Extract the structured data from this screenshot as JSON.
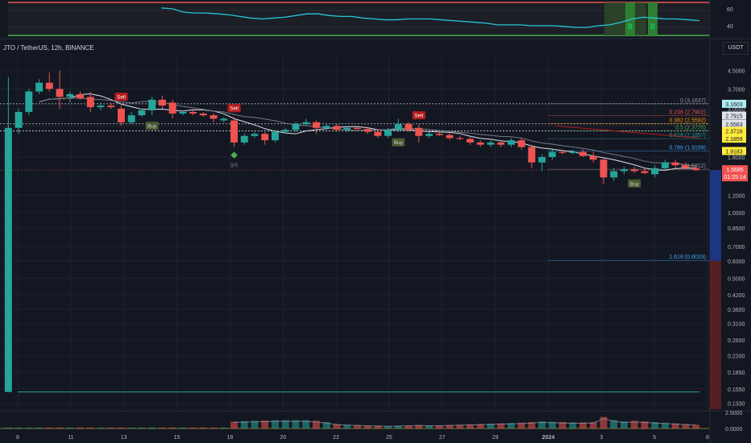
{
  "symbol_title": "JTO / TetherUS, 12h, BINANCE",
  "currency": "USDT",
  "colors": {
    "up": "#26a69a",
    "down": "#ef5350",
    "background": "#131722",
    "grid": "#1e222d",
    "sell_badge": "#b71c1c",
    "buy_badge": "#4a5a2e",
    "oscillator": "#26c6da"
  },
  "oscillator": {
    "labels": [
      "60",
      "40"
    ]
  },
  "chart_data": {
    "type": "candlestick",
    "x_tick_labels": [
      "8",
      "11",
      "13",
      "15",
      "18",
      "20",
      "22",
      "25",
      "27",
      "29",
      "2024",
      "3",
      "5",
      "8"
    ],
    "y_tick_labels": [
      "4.5000",
      "3.7000",
      "3.0000",
      "2.5000",
      "1.8000",
      "1.2000",
      "1.0000",
      "0.8500",
      "0.7000",
      "0.6000",
      "0.5000",
      "0.4200",
      "0.3600",
      "0.3100",
      "0.2600",
      "0.2200",
      "0.1850",
      "0.1550",
      "0.1330"
    ],
    "y_scale": "log",
    "ylim": [
      0.125,
      5.4
    ],
    "current_price": "1.5685",
    "countdown": "01:25:14",
    "price_labels": [
      {
        "text": "3.1603",
        "value": 3.1603,
        "style": "cyan"
      },
      {
        "text": "2.7915",
        "value": 2.7915,
        "style": "white"
      },
      {
        "text": "2.5563",
        "value": 2.5563,
        "style": "white"
      },
      {
        "text": "2.3716",
        "value": 2.3716,
        "style": "yellow"
      },
      {
        "text": "2.1859",
        "value": 2.1859,
        "style": "yellow"
      },
      {
        "text": "1.9183",
        "value": 1.9183,
        "style": "yellow"
      }
    ],
    "fib_levels": [
      {
        "label": "0 (3.1637)",
        "value": 3.1637,
        "color": "#9598a1"
      },
      {
        "label": "0.236 (2.7902)",
        "value": 2.7902,
        "color": "#ef5350"
      },
      {
        "label": "0.382 (2.5592)",
        "value": 2.5592,
        "color": "#ff9800"
      },
      {
        "label": "0.5 (2.3725)",
        "value": 2.3725,
        "color": "#4caf50"
      },
      {
        "label": "0.618 (2.1857)",
        "value": 2.1857,
        "color": "#26a69a"
      },
      {
        "label": "0.786 (1.9199)",
        "value": 1.9199,
        "color": "#42a5f5"
      },
      {
        "label": "1 (1.5812)",
        "value": 1.5812,
        "color": "#9598a1"
      },
      {
        "label": "1.618 (0.6033)",
        "value": 0.6033,
        "color": "#42a5f5"
      }
    ],
    "signals": [
      {
        "type": "Sell",
        "index": 11
      },
      {
        "type": "Buy",
        "index": 14
      },
      {
        "type": "Sell",
        "index": 22
      },
      {
        "type": "Buy",
        "index": 38
      },
      {
        "type": "Sell",
        "index": 40
      },
      {
        "type": "Buy",
        "index": 61
      }
    ],
    "pl_marker": {
      "text": "[pl]",
      "index": 22
    },
    "candles": [
      {
        "o": 0.15,
        "h": 4.2,
        "l": 0.15,
        "c": 2.45
      },
      {
        "o": 2.45,
        "h": 3.0,
        "l": 2.3,
        "c": 2.9
      },
      {
        "o": 2.9,
        "h": 3.7,
        "l": 2.8,
        "c": 3.6
      },
      {
        "o": 3.6,
        "h": 4.1,
        "l": 3.5,
        "c": 3.95
      },
      {
        "o": 3.95,
        "h": 4.4,
        "l": 3.6,
        "c": 3.7
      },
      {
        "o": 3.7,
        "h": 4.5,
        "l": 3.0,
        "c": 3.4
      },
      {
        "o": 3.4,
        "h": 3.6,
        "l": 3.2,
        "c": 3.5
      },
      {
        "o": 3.5,
        "h": 3.6,
        "l": 3.3,
        "c": 3.35
      },
      {
        "o": 3.4,
        "h": 3.6,
        "l": 2.9,
        "c": 3.05
      },
      {
        "o": 3.05,
        "h": 3.2,
        "l": 2.95,
        "c": 3.1
      },
      {
        "o": 3.1,
        "h": 3.2,
        "l": 3.0,
        "c": 3.05
      },
      {
        "o": 3.0,
        "h": 3.1,
        "l": 2.5,
        "c": 2.6
      },
      {
        "o": 2.6,
        "h": 2.9,
        "l": 2.55,
        "c": 2.8
      },
      {
        "o": 2.8,
        "h": 3.0,
        "l": 2.75,
        "c": 2.95
      },
      {
        "o": 2.95,
        "h": 3.4,
        "l": 2.8,
        "c": 3.3
      },
      {
        "o": 3.3,
        "h": 3.45,
        "l": 3.0,
        "c": 3.1
      },
      {
        "o": 3.2,
        "h": 3.3,
        "l": 2.7,
        "c": 2.85
      },
      {
        "o": 2.85,
        "h": 2.95,
        "l": 2.8,
        "c": 2.9
      },
      {
        "o": 2.9,
        "h": 2.95,
        "l": 2.8,
        "c": 2.85
      },
      {
        "o": 2.85,
        "h": 2.9,
        "l": 2.75,
        "c": 2.8
      },
      {
        "o": 2.8,
        "h": 2.85,
        "l": 2.6,
        "c": 2.7
      },
      {
        "o": 2.65,
        "h": 2.75,
        "l": 2.6,
        "c": 2.7
      },
      {
        "o": 2.65,
        "h": 2.75,
        "l": 2.0,
        "c": 2.1
      },
      {
        "o": 2.1,
        "h": 2.3,
        "l": 2.05,
        "c": 2.25
      },
      {
        "o": 2.25,
        "h": 2.35,
        "l": 2.2,
        "c": 2.3
      },
      {
        "o": 2.3,
        "h": 2.35,
        "l": 2.05,
        "c": 2.15
      },
      {
        "o": 2.15,
        "h": 2.4,
        "l": 2.1,
        "c": 2.35
      },
      {
        "o": 2.35,
        "h": 2.45,
        "l": 2.3,
        "c": 2.4
      },
      {
        "o": 2.4,
        "h": 2.6,
        "l": 2.35,
        "c": 2.55
      },
      {
        "o": 2.55,
        "h": 2.7,
        "l": 2.5,
        "c": 2.6
      },
      {
        "o": 2.6,
        "h": 2.65,
        "l": 2.3,
        "c": 2.45
      },
      {
        "o": 2.45,
        "h": 2.55,
        "l": 2.4,
        "c": 2.5
      },
      {
        "o": 2.5,
        "h": 2.55,
        "l": 2.35,
        "c": 2.4
      },
      {
        "o": 2.4,
        "h": 2.5,
        "l": 2.35,
        "c": 2.45
      },
      {
        "o": 2.45,
        "h": 2.5,
        "l": 2.4,
        "c": 2.42
      },
      {
        "o": 2.42,
        "h": 2.48,
        "l": 2.3,
        "c": 2.35
      },
      {
        "o": 2.35,
        "h": 2.4,
        "l": 2.2,
        "c": 2.25
      },
      {
        "o": 2.25,
        "h": 2.45,
        "l": 2.2,
        "c": 2.4
      },
      {
        "o": 2.4,
        "h": 2.7,
        "l": 2.35,
        "c": 2.55
      },
      {
        "o": 2.55,
        "h": 2.6,
        "l": 2.35,
        "c": 2.4
      },
      {
        "o": 2.45,
        "h": 2.55,
        "l": 2.1,
        "c": 2.25
      },
      {
        "o": 2.25,
        "h": 2.35,
        "l": 2.2,
        "c": 2.3
      },
      {
        "o": 2.3,
        "h": 2.35,
        "l": 2.25,
        "c": 2.27
      },
      {
        "o": 2.27,
        "h": 2.32,
        "l": 2.15,
        "c": 2.2
      },
      {
        "o": 2.2,
        "h": 2.25,
        "l": 2.15,
        "c": 2.18
      },
      {
        "o": 2.18,
        "h": 2.22,
        "l": 2.05,
        "c": 2.1
      },
      {
        "o": 2.1,
        "h": 2.15,
        "l": 2.0,
        "c": 2.05
      },
      {
        "o": 2.05,
        "h": 2.15,
        "l": 2.0,
        "c": 2.1
      },
      {
        "o": 2.1,
        "h": 2.12,
        "l": 2.0,
        "c": 2.05
      },
      {
        "o": 2.05,
        "h": 2.2,
        "l": 2.0,
        "c": 2.15
      },
      {
        "o": 2.15,
        "h": 2.2,
        "l": 1.95,
        "c": 2.0
      },
      {
        "o": 2.0,
        "h": 2.05,
        "l": 1.6,
        "c": 1.7
      },
      {
        "o": 1.7,
        "h": 1.85,
        "l": 1.55,
        "c": 1.8
      },
      {
        "o": 1.8,
        "h": 1.95,
        "l": 1.75,
        "c": 1.9
      },
      {
        "o": 1.9,
        "h": 1.95,
        "l": 1.85,
        "c": 1.88
      },
      {
        "o": 1.88,
        "h": 1.95,
        "l": 1.85,
        "c": 1.9
      },
      {
        "o": 1.9,
        "h": 1.95,
        "l": 1.8,
        "c": 1.82
      },
      {
        "o": 1.82,
        "h": 1.9,
        "l": 1.7,
        "c": 1.75
      },
      {
        "o": 1.75,
        "h": 1.78,
        "l": 1.35,
        "c": 1.45
      },
      {
        "o": 1.45,
        "h": 1.6,
        "l": 1.4,
        "c": 1.55
      },
      {
        "o": 1.55,
        "h": 1.62,
        "l": 1.5,
        "c": 1.58
      },
      {
        "o": 1.58,
        "h": 1.62,
        "l": 1.52,
        "c": 1.55
      },
      {
        "o": 1.55,
        "h": 1.6,
        "l": 1.5,
        "c": 1.52
      },
      {
        "o": 1.5,
        "h": 1.65,
        "l": 1.45,
        "c": 1.6
      },
      {
        "o": 1.6,
        "h": 1.75,
        "l": 1.58,
        "c": 1.7
      },
      {
        "o": 1.7,
        "h": 1.75,
        "l": 1.6,
        "c": 1.65
      },
      {
        "o": 1.65,
        "h": 1.7,
        "l": 1.58,
        "c": 1.6
      },
      {
        "o": 1.6,
        "h": 1.65,
        "l": 1.55,
        "c": 1.5685
      }
    ],
    "volume_ylim": [
      0,
      2.5
    ],
    "volume_labels": [
      "2.5000",
      "0.0000"
    ],
    "volume": [
      0.15,
      0.15,
      0.15,
      0.15,
      0.15,
      0.15,
      0.15,
      0.15,
      0.15,
      0.15,
      0.15,
      0.15,
      0.15,
      0.15,
      0.15,
      0.15,
      0.15,
      0.15,
      0.15,
      0.15,
      0.15,
      0.15,
      1.1,
      1.15,
      1.2,
      1.25,
      1.3,
      1.3,
      1.3,
      1.3,
      1.2,
      1.0,
      0.7,
      0.6,
      0.55,
      0.5,
      0.45,
      0.4,
      0.45,
      0.5,
      0.55,
      0.5,
      0.5,
      0.55,
      0.6,
      0.65,
      0.7,
      0.75,
      0.8,
      0.85,
      0.9,
      1.0,
      1.1,
      1.05,
      1.0,
      0.95,
      0.95,
      1.0,
      1.8,
      1.3,
      1.1,
      1.2,
      1.1,
      1.0,
      0.9,
      0.8,
      0.7,
      0.6
    ],
    "oscillator_values": [
      63,
      62,
      58,
      57,
      57,
      56,
      55,
      53,
      51,
      50,
      51,
      52,
      54,
      56,
      56,
      54,
      53,
      53,
      51,
      50,
      49,
      49,
      50,
      50,
      50,
      49,
      48,
      47,
      46,
      45,
      43,
      43,
      43,
      42,
      42,
      42,
      41,
      40,
      40,
      42,
      43,
      46,
      50,
      52,
      51,
      50,
      50,
      49,
      48
    ]
  }
}
